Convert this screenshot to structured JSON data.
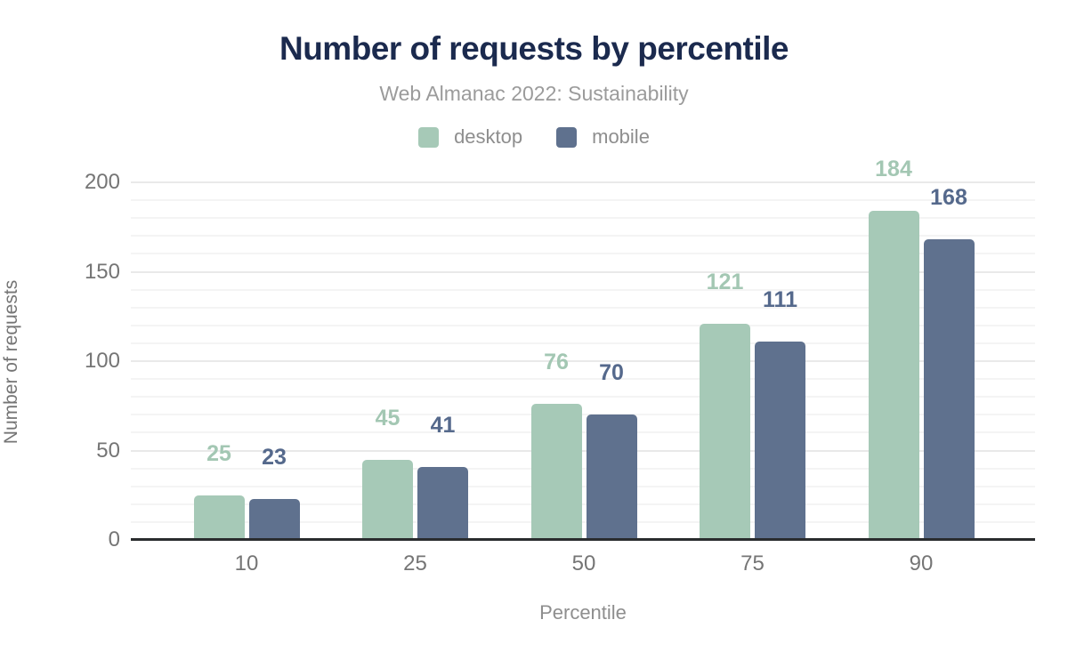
{
  "header": {
    "title": "Number of requests by percentile",
    "subtitle": "Web Almanac 2022: Sustainability"
  },
  "axes": {
    "ylabel": "Number of requests",
    "xlabel": "Percentile"
  },
  "colors": {
    "title": "#1b2a4e",
    "subtitle": "#9b9b9b",
    "axis_text": "#757575",
    "baseline": "#2a2c2e",
    "desktop": "#a6c9b7",
    "mobile": "#5f718e",
    "desktop_label": "#a3c7b3",
    "mobile_label": "#55698c"
  },
  "chart_data": {
    "type": "bar",
    "title": "Number of requests by percentile",
    "subtitle": "Web Almanac 2022: Sustainability",
    "categories": [
      "10",
      "25",
      "50",
      "75",
      "90"
    ],
    "series": [
      {
        "name": "desktop",
        "color": "#a6c9b7",
        "label_color": "#a3c7b3",
        "values": [
          25,
          45,
          76,
          121,
          184
        ]
      },
      {
        "name": "mobile",
        "color": "#5f718e",
        "label_color": "#55698c",
        "values": [
          23,
          41,
          70,
          111,
          168
        ]
      }
    ],
    "xlabel": "Percentile",
    "ylabel": "Number of requests",
    "ylim": [
      0,
      200
    ],
    "yticks": [
      0,
      50,
      100,
      150,
      200
    ],
    "grid": {
      "minor_step": 10,
      "major_step": 50,
      "horizontal": true
    },
    "legend_position": "top",
    "data_labels": "above-bars"
  }
}
